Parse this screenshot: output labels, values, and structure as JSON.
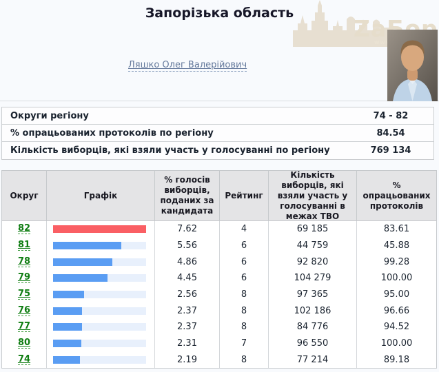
{
  "page": {
    "title": "Запорізька область",
    "candidate_link": "Ляшко Олег Валерійович",
    "watermark": {
      "text": "ZаБор",
      "url_fragment": "www.zab"
    }
  },
  "summary": {
    "rows": [
      {
        "label": "Округи регіону",
        "value": "74 - 82"
      },
      {
        "label": "% опрацьованих протоколів по регіону",
        "value": "84.54"
      },
      {
        "label": "Кількість виборців, які взяли участь у голосуванні по регіону",
        "value": "769 134"
      }
    ]
  },
  "results_table": {
    "headers": [
      "Округ",
      "Графік",
      "% голосів виборців, поданих за кандидата",
      "Рейтинг",
      "Кількість виборців, які взяли участь у голосуванні в межах ТВО",
      "% опрацьованих протоколів"
    ],
    "max_percent": 7.62,
    "rows": [
      {
        "district": "82",
        "percent": 7.62,
        "percent_label": "7.62",
        "rating": "4",
        "voters": "69 185",
        "protocols": "83.61",
        "bar": "red"
      },
      {
        "district": "81",
        "percent": 5.56,
        "percent_label": "5.56",
        "rating": "6",
        "voters": "44 759",
        "protocols": "45.88",
        "bar": "blue"
      },
      {
        "district": "78",
        "percent": 4.86,
        "percent_label": "4.86",
        "rating": "6",
        "voters": "92 820",
        "protocols": "99.28",
        "bar": "blue"
      },
      {
        "district": "79",
        "percent": 4.45,
        "percent_label": "4.45",
        "rating": "6",
        "voters": "104 279",
        "protocols": "100.00",
        "bar": "blue"
      },
      {
        "district": "75",
        "percent": 2.56,
        "percent_label": "2.56",
        "rating": "8",
        "voters": "97 365",
        "protocols": "95.00",
        "bar": "blue"
      },
      {
        "district": "76",
        "percent": 2.37,
        "percent_label": "2.37",
        "rating": "8",
        "voters": "102 186",
        "protocols": "96.66",
        "bar": "blue"
      },
      {
        "district": "77",
        "percent": 2.37,
        "percent_label": "2.37",
        "rating": "8",
        "voters": "84 776",
        "protocols": "94.52",
        "bar": "blue"
      },
      {
        "district": "80",
        "percent": 2.31,
        "percent_label": "2.31",
        "rating": "7",
        "voters": "96 550",
        "protocols": "100.00",
        "bar": "blue"
      },
      {
        "district": "74",
        "percent": 2.19,
        "percent_label": "2.19",
        "rating": "8",
        "voters": "77 214",
        "protocols": "89.18",
        "bar": "blue"
      }
    ]
  },
  "colors": {
    "bar_red": "#fa5f64",
    "bar_blue": "#5a9df3",
    "bar_track": "#e8f0fc",
    "district_green": "#0f7d12",
    "link_blue": "#64799c"
  }
}
